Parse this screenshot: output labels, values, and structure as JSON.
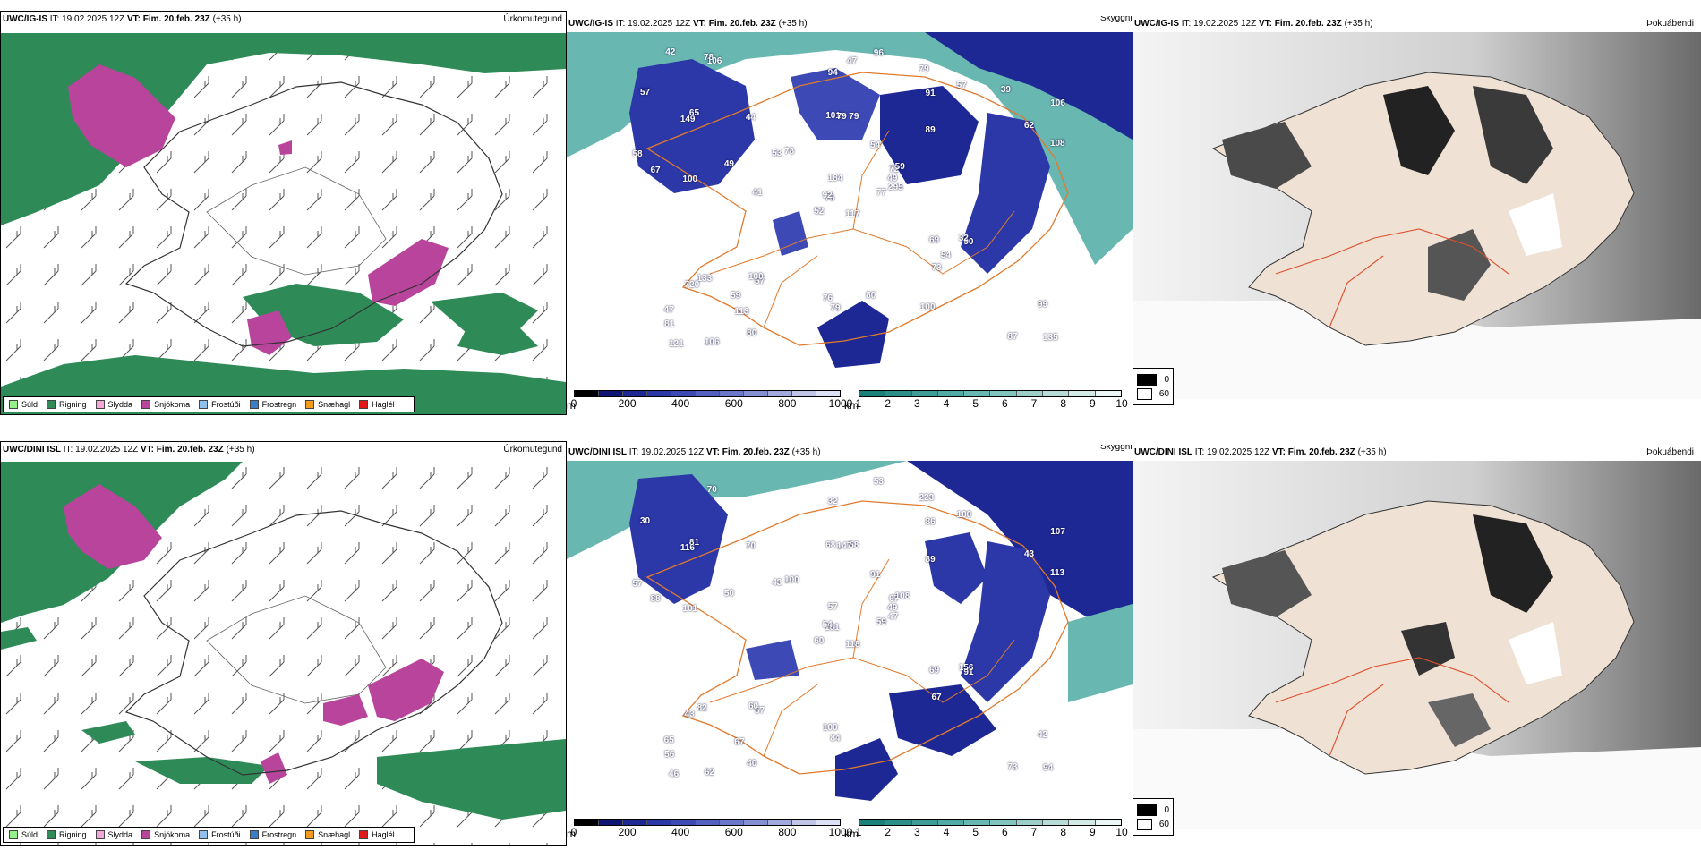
{
  "rows": [
    {
      "model": "UWC/IG-IS",
      "precip": {
        "header": {
          "model": "UWC/IG-IS",
          "it": "IT: 19.02.2025 12Z",
          "vt_label": "VT:",
          "vt": "Fim. 20.feb. 23Z",
          "lead": "(+35 h)"
        },
        "title": "Úrkomutegund"
      },
      "cloud": {
        "header": {
          "model": "UWC/IG-IS",
          "it": "IT: 19.02.2025 12Z",
          "vt_label": "VT:",
          "vt": "Fim. 20.feb. 23Z",
          "lead": "(+35 h)"
        },
        "title": "Skyggni",
        "numbers": [
          "117",
          "149",
          "76",
          "47",
          "72",
          "57",
          "79",
          "79",
          "91",
          "77",
          "106",
          "135",
          "100",
          "106",
          "52",
          "89",
          "106",
          "101",
          "54",
          "133",
          "78",
          "81",
          "113",
          "79",
          "59",
          "90",
          "65",
          "94",
          "67",
          "69",
          "108",
          "92",
          "76",
          "184",
          "44",
          "57",
          "100",
          "87",
          "99",
          "32",
          "96",
          "53",
          "49",
          "73",
          "80",
          "58",
          "49",
          "121",
          "79",
          "295",
          "720",
          "62",
          "57",
          "54",
          "100",
          "59",
          "78",
          "42",
          "80",
          "39",
          "47",
          "41"
        ]
      },
      "fog": {
        "header": {
          "model": "UWC/IG-IS",
          "it": "IT: 19.02.2025 12Z",
          "vt_label": "VT:",
          "vt": "Fim. 20.feb. 23Z",
          "lead": "(+35 h)"
        },
        "title": "Þokuábendi"
      }
    },
    {
      "model": "UWC/DINI ISL",
      "precip": {
        "header": {
          "model": "UWC/DINI ISL",
          "it": "IT: 19.02.2025 12Z",
          "vt_label": "VT:",
          "vt": "Fim. 20.feb. 23Z",
          "lead": "(+35 h)"
        },
        "title": "Úrkomutegund"
      },
      "cloud": {
        "header": {
          "model": "UWC/DINI ISL",
          "it": "IT: 19.02.2025 12Z",
          "vt_label": "VT:",
          "vt": "Fim. 20.feb. 23Z",
          "lead": "(+35 h)"
        },
        "title": "Skyggni",
        "numbers": [
          "118",
          "116",
          "161",
          "65",
          "67",
          "57",
          "223",
          "58",
          "86",
          "59",
          "70",
          "94",
          "101",
          "107",
          "60",
          "89",
          "62",
          "68",
          "91",
          "82",
          "100",
          "56",
          "67",
          "147",
          "108",
          "91",
          "81",
          "32",
          "88",
          "69",
          "113",
          "54",
          "100",
          "57",
          "70",
          "100",
          "60",
          "73",
          "42",
          "156",
          "53",
          "43",
          "50",
          "67",
          "40",
          "57",
          "49",
          "46",
          "84",
          "47",
          "43",
          "43",
          "30"
        ]
      },
      "fog": {
        "header": {
          "model": "UWC/DINI ISL",
          "it": "IT: 19.02.2025 12Z",
          "vt_label": "VT:",
          "vt": "Fim. 20.feb. 23Z",
          "lead": "(+35 h)"
        },
        "title": "Þokuábendi"
      }
    }
  ],
  "precip_legend": [
    {
      "label": "Súld",
      "color": "#98f08c"
    },
    {
      "label": "Rigning",
      "color": "#2e8b57"
    },
    {
      "label": "Slydda",
      "color": "#f4a6d7"
    },
    {
      "label": "Snjókoma",
      "color": "#b8449b"
    },
    {
      "label": "Frostúði",
      "color": "#8fc1ef"
    },
    {
      "label": "Frostregn",
      "color": "#3a7ec8"
    },
    {
      "label": "Snæhagl",
      "color": "#f29b1d"
    },
    {
      "label": "Haglél",
      "color": "#e01a1a"
    }
  ],
  "cloud_base_bar": {
    "unit": "m",
    "ticks": [
      "0",
      "200",
      "400",
      "600",
      "800",
      "1000"
    ],
    "colors": [
      "#000000",
      "#0d1473",
      "#1d2894",
      "#2c37a8",
      "#3d49b5",
      "#5360c0",
      "#6b77c9",
      "#8590d3",
      "#a2aadd",
      "#c0c5e8",
      "#dee1f3"
    ]
  },
  "visibility_bar": {
    "unit": "km",
    "ticks": [
      "1",
      "2",
      "3",
      "4",
      "5",
      "6",
      "7",
      "8",
      "9",
      "10"
    ],
    "colors": [
      "#1b7f7a",
      "#2b8e88",
      "#3d9c96",
      "#52aaa4",
      "#69b7b1",
      "#82c4be",
      "#9ccfca",
      "#b7dcd8",
      "#d2e9e6",
      "#ecf6f5"
    ]
  },
  "fog_legend": [
    {
      "label": "0",
      "color": "#000000"
    },
    {
      "label": "60",
      "color": "#ffffff"
    }
  ]
}
